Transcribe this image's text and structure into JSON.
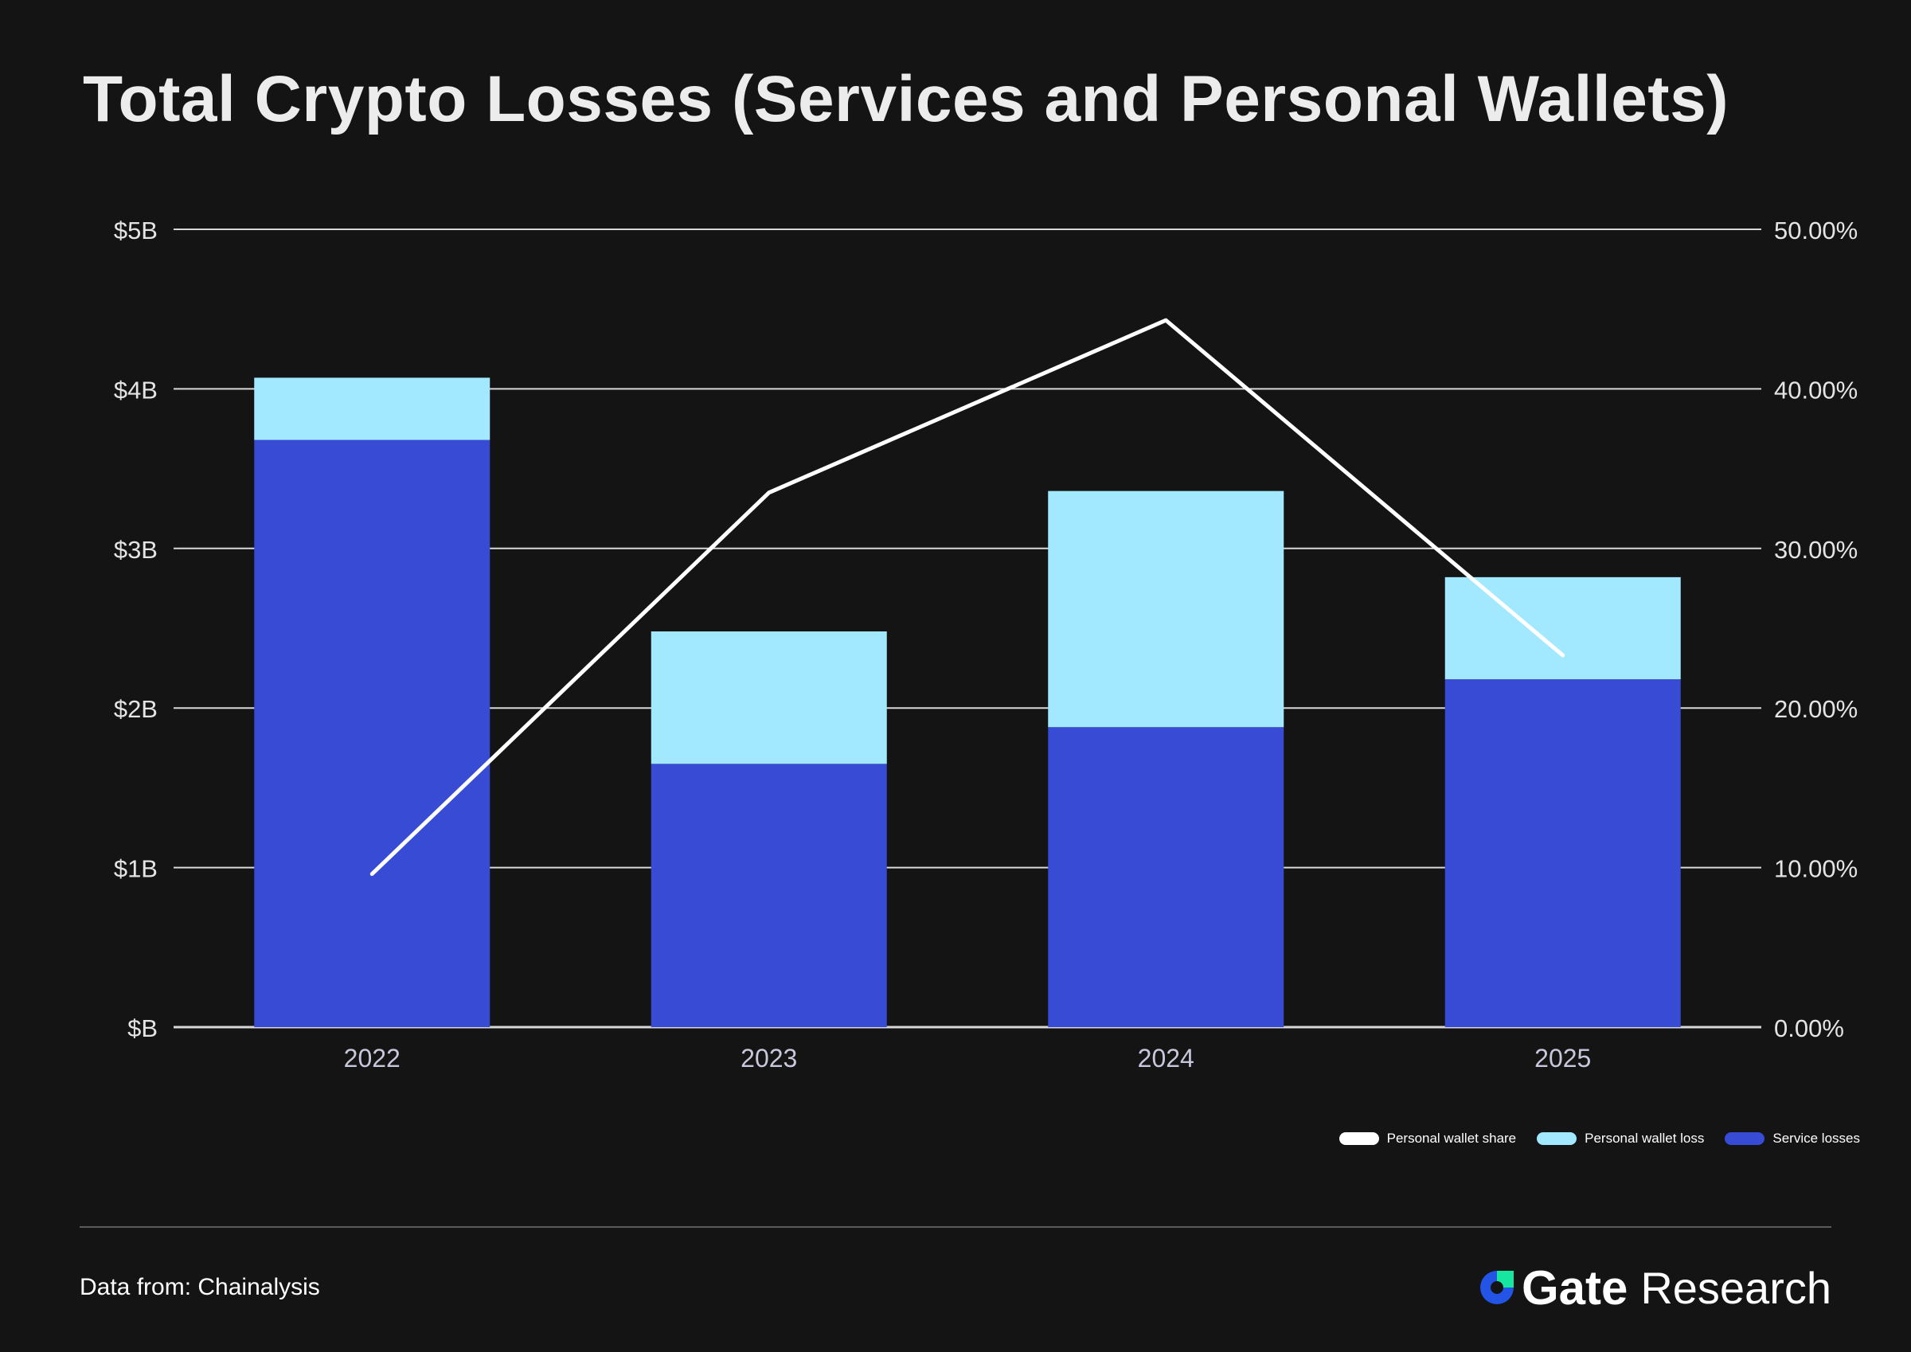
{
  "title": "Total Crypto Losses (Services and Personal Wallets)",
  "chart_data": {
    "type": "bar",
    "stacked": true,
    "categories": [
      "2022",
      "2023",
      "2024",
      "2025"
    ],
    "series": [
      {
        "name": "Service losses",
        "type": "bar",
        "axis": "left",
        "color": "#374bd4",
        "values": [
          3.68,
          1.65,
          1.88,
          2.18
        ]
      },
      {
        "name": "Personal wallet loss",
        "type": "bar",
        "axis": "left",
        "color": "#a2e9ff",
        "values": [
          0.39,
          0.83,
          1.48,
          0.64
        ]
      },
      {
        "name": "Personal wallet share",
        "type": "line",
        "axis": "right",
        "color": "#ffffff",
        "values": [
          9.6,
          33.5,
          44.3,
          23.3
        ]
      }
    ],
    "y_left": {
      "min": 0,
      "max": 5,
      "ticks": [
        0,
        1,
        2,
        3,
        4,
        5
      ],
      "tick_labels": [
        "$B",
        "$1B",
        "$2B",
        "$3B",
        "$4B",
        "$5B"
      ]
    },
    "y_right": {
      "min": 0,
      "max": 50,
      "ticks": [
        0,
        10,
        20,
        30,
        40,
        50
      ],
      "tick_labels": [
        "0.00%",
        "10.00%",
        "20.00%",
        "30.00%",
        "40.00%",
        "50.00%"
      ]
    },
    "xlabel": "",
    "ylabel": "",
    "grid": true,
    "legend_position": "bottom-right"
  },
  "legend": [
    {
      "label": "Personal wallet share",
      "color": "#ffffff"
    },
    {
      "label": "Personal wallet loss",
      "color": "#a2e9ff"
    },
    {
      "label": "Service losses",
      "color": "#374bd4"
    }
  ],
  "source": {
    "label": "Data from:",
    "value": "Chainalysis"
  },
  "brand": {
    "name": "Gate",
    "suffix": "Research"
  }
}
